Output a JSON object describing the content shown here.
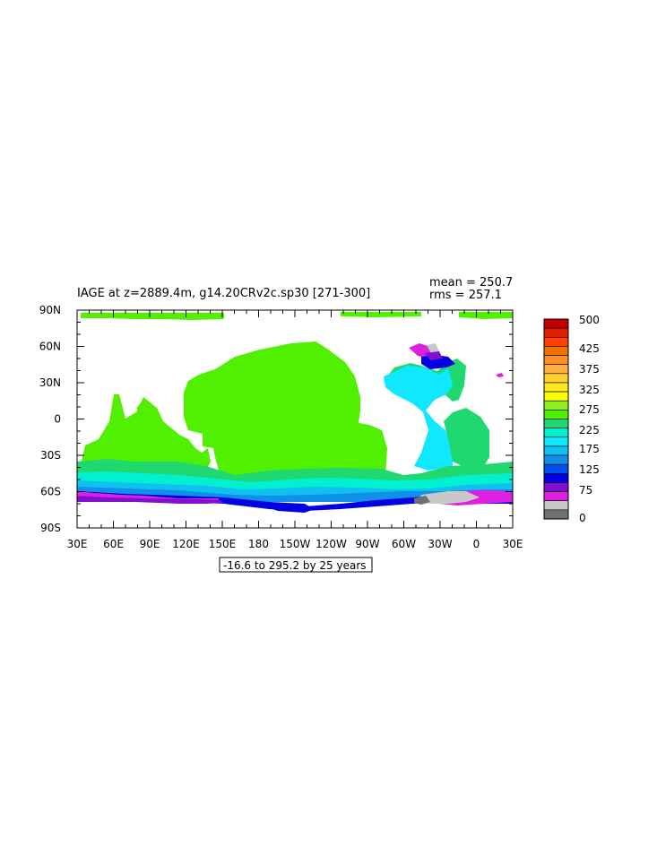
{
  "header": {
    "title": "IAGE at z=2889.4m, g14.20CRv2c.sp30 [271-300]",
    "mean_text": "mean = 250.7",
    "rms_text": "rms = 257.1"
  },
  "footer": {
    "contour_info": "-16.6 to 295.2 by 25 years"
  },
  "map": {
    "projection": "cylindrical-equidistant",
    "lon_range": [
      30,
      390
    ],
    "lat_range": [
      -90,
      90
    ],
    "lon_tick_labels": [
      "30E",
      "60E",
      "90E",
      "120E",
      "150E",
      "180",
      "150W",
      "120W",
      "90W",
      "60W",
      "30W",
      "0",
      "30E"
    ],
    "lat_tick_labels": [
      "90N",
      "60N",
      "30N",
      "0",
      "30S",
      "60S",
      "90S"
    ]
  },
  "colorbar": {
    "labels": [
      "500",
      "425",
      "375",
      "325",
      "275",
      "225",
      "175",
      "125",
      "75",
      "0"
    ],
    "colors_top_to_bottom": [
      "#c00000",
      "#e02000",
      "#ff4000",
      "#f07000",
      "#f89020",
      "#ffb040",
      "#ffd030",
      "#ffe820",
      "#ffff00",
      "#90f020",
      "#50f000",
      "#20d870",
      "#00f0d0",
      "#10e8ff",
      "#10c0f0",
      "#1090e8",
      "#0050f0",
      "#0000e0",
      "#8010d0",
      "#e020e0",
      "#c8c8c8",
      "#707070"
    ]
  },
  "land_color": "#ffffff",
  "icon": {
    "colorbar-name": "colorbar",
    "map-name": "ocean-age-map"
  }
}
